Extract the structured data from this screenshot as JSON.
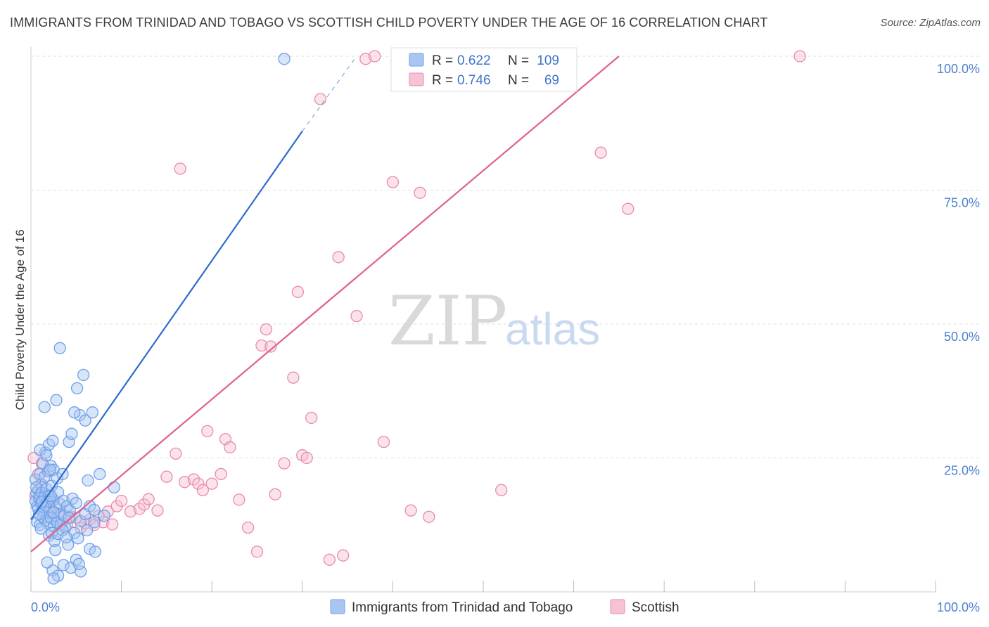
{
  "title": "IMMIGRANTS FROM TRINIDAD AND TOBAGO VS SCOTTISH CHILD POVERTY UNDER THE AGE OF 16 CORRELATION CHART",
  "source": "Source: ZipAtlas.com",
  "watermark": {
    "zip": "ZIP",
    "atlas": "atlas"
  },
  "colors": {
    "blue": "#6fa0e8",
    "blue_fill": "#a9c6f2",
    "blue_line": "#2b6ccc",
    "pink": "#e98bab",
    "pink_fill": "#f6c2d4",
    "pink_line": "#e0608c",
    "tick": "#4a7fd0",
    "grid": "#dddddd"
  },
  "legend": {
    "r_label": "R =",
    "n_label": "N =",
    "rows": [
      {
        "r": "0.622",
        "n": "109"
      },
      {
        "r": "0.746",
        "n": "69"
      }
    ]
  },
  "chart_data": {
    "type": "scatter",
    "title": "IMMIGRANTS FROM TRINIDAD AND TOBAGO VS SCOTTISH CHILD POVERTY UNDER THE AGE OF 16 CORRELATION CHART",
    "xlabel": "",
    "ylabel": "Child Poverty Under the Age of 16",
    "xlim": [
      0,
      100
    ],
    "ylim": [
      0,
      100
    ],
    "x_tick_labels": [
      {
        "value": 0,
        "label": "0.0%"
      },
      {
        "value": 100,
        "label": "100.0%"
      }
    ],
    "y_tick_labels": [
      {
        "value": 25,
        "label": "25.0%"
      },
      {
        "value": 50,
        "label": "50.0%"
      },
      {
        "value": 75,
        "label": "75.0%"
      },
      {
        "value": 100,
        "label": "100.0%"
      }
    ],
    "grid": true,
    "legend_position": "top-center",
    "series": [
      {
        "name": "Immigrants from Trinidad and Tobago",
        "r": 0.622,
        "n": 109,
        "trend": {
          "x1": 0,
          "y1": 13.5,
          "x2": 30,
          "y2": 86,
          "dashed_to_x": 36,
          "dashed_to_y": 100
        },
        "points": [
          [
            0.5,
            17
          ],
          [
            0.6,
            18.5
          ],
          [
            0.7,
            16
          ],
          [
            0.8,
            19
          ],
          [
            0.9,
            17.5
          ],
          [
            1,
            18
          ],
          [
            1.1,
            16.5
          ],
          [
            1.2,
            20
          ],
          [
            1.3,
            17
          ],
          [
            1.4,
            15
          ],
          [
            0.5,
            21
          ],
          [
            0.6,
            19.5
          ],
          [
            0.8,
            15.5
          ],
          [
            1,
            22
          ],
          [
            1.2,
            18.5
          ],
          [
            1.5,
            17.8
          ],
          [
            1.6,
            16.2
          ],
          [
            1.7,
            19.2
          ],
          [
            1.8,
            14
          ],
          [
            2,
            18
          ],
          [
            2.1,
            15
          ],
          [
            2.2,
            16.8
          ],
          [
            2.3,
            19.8
          ],
          [
            2.5,
            17.2
          ],
          [
            2.6,
            13.5
          ],
          [
            2.8,
            15.8
          ],
          [
            3,
            18.6
          ],
          [
            3.2,
            16.4
          ],
          [
            3.4,
            14.6
          ],
          [
            3.6,
            17
          ],
          [
            0.7,
            13
          ],
          [
            1,
            12.5
          ],
          [
            1.3,
            14
          ],
          [
            1.6,
            13.3
          ],
          [
            1.9,
            12.8
          ],
          [
            2.2,
            13.8
          ],
          [
            2.5,
            12.2
          ],
          [
            2.9,
            13
          ],
          [
            3.3,
            12.5
          ],
          [
            3.7,
            14.2
          ],
          [
            4,
            16
          ],
          [
            4.3,
            15.2
          ],
          [
            4.6,
            17.4
          ],
          [
            5,
            16.6
          ],
          [
            5.5,
            13.2
          ],
          [
            6,
            14.5
          ],
          [
            6.5,
            16
          ],
          [
            7,
            15.3
          ],
          [
            4.2,
            13.8
          ],
          [
            3.8,
            12
          ],
          [
            2,
            10.5
          ],
          [
            2.3,
            11
          ],
          [
            2.6,
            9.5
          ],
          [
            3,
            10.8
          ],
          [
            3.5,
            11.5
          ],
          [
            4.8,
            11
          ],
          [
            5.2,
            10
          ],
          [
            2.5,
            14.8
          ],
          [
            1.8,
            16.8
          ],
          [
            1.4,
            15.8
          ],
          [
            1.5,
            21.5
          ],
          [
            1.9,
            22.5
          ],
          [
            2.2,
            23.5
          ],
          [
            2.5,
            22.8
          ],
          [
            1.3,
            24
          ],
          [
            1.6,
            26
          ],
          [
            2,
            27.5
          ],
          [
            2.4,
            28.2
          ],
          [
            2.9,
            21.2
          ],
          [
            3.5,
            22
          ],
          [
            4.2,
            28
          ],
          [
            4.5,
            29.5
          ],
          [
            5.4,
            33
          ],
          [
            6,
            32
          ],
          [
            6.8,
            33.5
          ],
          [
            4.8,
            33.5
          ],
          [
            1.5,
            34.5
          ],
          [
            2.8,
            35.8
          ],
          [
            5.1,
            38
          ],
          [
            5.8,
            40.5
          ],
          [
            3.2,
            45.5
          ],
          [
            1,
            26.5
          ],
          [
            1.7,
            25.5
          ],
          [
            2.1,
            22.8
          ],
          [
            6.3,
            20.8
          ],
          [
            7.6,
            22
          ],
          [
            9.2,
            19.5
          ],
          [
            8.1,
            14.2
          ],
          [
            7,
            13
          ],
          [
            6.2,
            11.5
          ],
          [
            2.4,
            4
          ],
          [
            3,
            3
          ],
          [
            3.6,
            5
          ],
          [
            4.4,
            4.5
          ],
          [
            5,
            6
          ],
          [
            5.5,
            3.8
          ],
          [
            6.5,
            8
          ],
          [
            7.1,
            7.5
          ],
          [
            1.8,
            5.5
          ],
          [
            2.5,
            2.5
          ],
          [
            5.3,
            5.2
          ],
          [
            4.1,
            8.8
          ],
          [
            3.9,
            10.2
          ],
          [
            2.7,
            7.8
          ],
          [
            1.1,
            11.8
          ],
          [
            0.9,
            14.5
          ],
          [
            1.2,
            16.8
          ],
          [
            28,
            99.5
          ],
          [
            2.2,
            17.9
          ]
        ]
      },
      {
        "name": "Scottish",
        "r": 0.746,
        "n": 69,
        "trend": {
          "x1": 0,
          "y1": 7.5,
          "x2": 65,
          "y2": 100
        },
        "points": [
          [
            0.5,
            18
          ],
          [
            1,
            20
          ],
          [
            1.5,
            17
          ],
          [
            2,
            16
          ],
          [
            2.5,
            15
          ],
          [
            3,
            14.5
          ],
          [
            3.5,
            13
          ],
          [
            4,
            12.5
          ],
          [
            4.5,
            14
          ],
          [
            5,
            13.8
          ],
          [
            5.5,
            12
          ],
          [
            6,
            12.8
          ],
          [
            6.5,
            13.5
          ],
          [
            7,
            12.5
          ],
          [
            7.5,
            14.2
          ],
          [
            8,
            13
          ],
          [
            8.5,
            15
          ],
          [
            9,
            12.6
          ],
          [
            9.5,
            16
          ],
          [
            10,
            17
          ],
          [
            0.8,
            22
          ],
          [
            1.2,
            24
          ],
          [
            0.3,
            25
          ],
          [
            11,
            15
          ],
          [
            12,
            15.5
          ],
          [
            12.5,
            16.3
          ],
          [
            13,
            17.3
          ],
          [
            14,
            15.2
          ],
          [
            15,
            21.5
          ],
          [
            16,
            25.8
          ],
          [
            17,
            20.5
          ],
          [
            18,
            21
          ],
          [
            18.5,
            20.2
          ],
          [
            19,
            19
          ],
          [
            19.5,
            30
          ],
          [
            20,
            20.2
          ],
          [
            21,
            22
          ],
          [
            21.5,
            28.5
          ],
          [
            22,
            27
          ],
          [
            23,
            17.2
          ],
          [
            24,
            12
          ],
          [
            25,
            7.5
          ],
          [
            25.5,
            46
          ],
          [
            26,
            49
          ],
          [
            26.5,
            45.8
          ],
          [
            27,
            18.2
          ],
          [
            28,
            24
          ],
          [
            29,
            40
          ],
          [
            29.5,
            56
          ],
          [
            30,
            25.5
          ],
          [
            30.5,
            25
          ],
          [
            31,
            32.5
          ],
          [
            32,
            92
          ],
          [
            33,
            6
          ],
          [
            34,
            62.5
          ],
          [
            34.5,
            6.8
          ],
          [
            36,
            51.5
          ],
          [
            37,
            99.5
          ],
          [
            38,
            100
          ],
          [
            39,
            28
          ],
          [
            40,
            76.5
          ],
          [
            42,
            15.2
          ],
          [
            43,
            74.5
          ],
          [
            44,
            14
          ],
          [
            52,
            19
          ],
          [
            63,
            82
          ],
          [
            66,
            71.5
          ],
          [
            85,
            100
          ],
          [
            16.5,
            79
          ]
        ]
      }
    ]
  },
  "bottom_legend": [
    "Immigrants from Trinidad and Tobago",
    "Scottish"
  ]
}
